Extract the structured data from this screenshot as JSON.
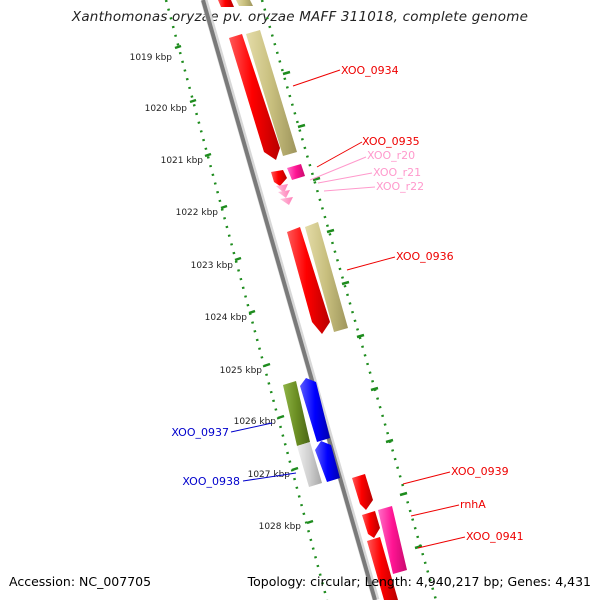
{
  "title": "Xanthomonas oryzae pv. oryzae MAFF 311018, complete genome",
  "footer": {
    "accession": "Accession: NC_007705",
    "summary": "Topology: circular; Length: 4,940,217 bp; Genes: 4,431"
  },
  "colors": {
    "cds_forward": "#ff0000",
    "cds_reverse_gene": "#0000ff",
    "rna": "#ff1493",
    "rna_light": "#ff99cc",
    "feature_khaki": "#c8bf7e",
    "feature_olive": "#6b8e23",
    "feature_gray": "#c8c8c8",
    "ruler_green": "#1e8c1e",
    "backbone": "#777777"
  },
  "scale": {
    "unit": "kbp",
    "ticks": [
      {
        "kbp": 1019,
        "label": "1019 kbp"
      },
      {
        "kbp": 1020,
        "label": "1020 kbp"
      },
      {
        "kbp": 1021,
        "label": "1021 kbp"
      },
      {
        "kbp": 1022,
        "label": "1022 kbp"
      },
      {
        "kbp": 1023,
        "label": "1023 kbp"
      },
      {
        "kbp": 1024,
        "label": "1024 kbp"
      },
      {
        "kbp": 1025,
        "label": "1025 kbp"
      },
      {
        "kbp": 1026,
        "label": "1026 kbp"
      },
      {
        "kbp": 1027,
        "label": "1027 kbp"
      },
      {
        "kbp": 1028,
        "label": "1028 kbp"
      }
    ]
  },
  "features": [
    {
      "name": "XOO_0934",
      "color": "#ff0000",
      "label_color": "#ee0000",
      "side": "right"
    },
    {
      "name": "XOO_0935",
      "color": "#ff0000",
      "label_color": "#ee0000",
      "side": "right"
    },
    {
      "name": "XOO_r20",
      "color": "#ff99cc",
      "label_color": "#ff99cc",
      "side": "right"
    },
    {
      "name": "XOO_r21",
      "color": "#ff99cc",
      "label_color": "#ff99cc",
      "side": "right"
    },
    {
      "name": "XOO_r22",
      "color": "#ff99cc",
      "label_color": "#ff99cc",
      "side": "right"
    },
    {
      "name": "XOO_0936",
      "color": "#ff0000",
      "label_color": "#ee0000",
      "side": "right"
    },
    {
      "name": "XOO_0937",
      "color": "#0000ff",
      "label_color": "#0000cc",
      "side": "left"
    },
    {
      "name": "XOO_0938",
      "color": "#0000ff",
      "label_color": "#0000cc",
      "side": "left"
    },
    {
      "name": "XOO_0939",
      "color": "#ff0000",
      "label_color": "#ee0000",
      "side": "right"
    },
    {
      "name": "rnhA",
      "color": "#ff0000",
      "label_color": "#ee0000",
      "side": "right"
    },
    {
      "name": "XOO_0941",
      "color": "#ff0000",
      "label_color": "#ee0000",
      "side": "right"
    }
  ]
}
